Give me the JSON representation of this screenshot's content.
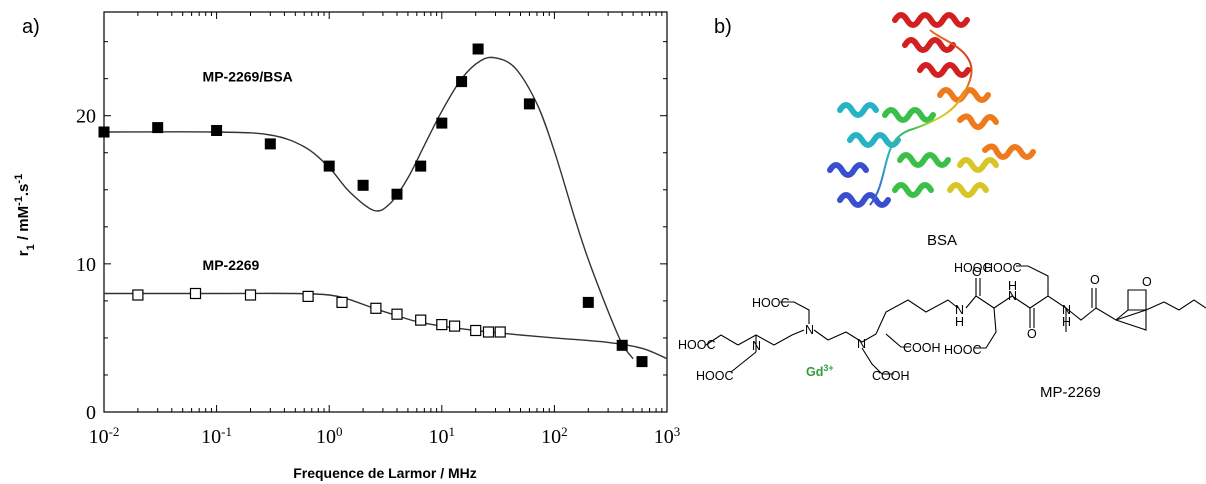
{
  "panels": {
    "a": "a)",
    "b": "b)"
  },
  "chart_data": {
    "type": "scatter",
    "xscale": "log",
    "xlim": [
      0.01,
      1000
    ],
    "ylim": [
      0,
      27
    ],
    "xlabel": "Frequence de Larmor / MHz",
    "ylabel_parts": {
      "r": "r",
      "r_sub": "1",
      "mid": " / mM",
      "mm_sup": "-1",
      "dot": ".s",
      "s_sup": "-1"
    },
    "xtick_labels": [
      {
        "value": 0.01,
        "base": "10",
        "exp": "-2"
      },
      {
        "value": 0.1,
        "base": "10",
        "exp": "-1"
      },
      {
        "value": 1,
        "base": "10",
        "exp": "0"
      },
      {
        "value": 10,
        "base": "10",
        "exp": "1"
      },
      {
        "value": 100,
        "base": "10",
        "exp": "2"
      },
      {
        "value": 1000,
        "base": "10",
        "exp": "3"
      }
    ],
    "ytick_labels": [
      {
        "value": 0,
        "label": "0"
      },
      {
        "value": 10,
        "label": "10"
      },
      {
        "value": 20,
        "label": "20"
      }
    ],
    "series": [
      {
        "name": "MP-2269/BSA",
        "marker": "filled-square",
        "label_at": [
          0.075,
          22.3
        ],
        "points": [
          [
            0.01,
            18.9
          ],
          [
            0.03,
            19.2
          ],
          [
            0.1,
            19.0
          ],
          [
            0.3,
            18.1
          ],
          [
            1.0,
            16.6
          ],
          [
            2.0,
            15.3
          ],
          [
            4.0,
            14.7
          ],
          [
            6.5,
            16.6
          ],
          [
            10,
            19.5
          ],
          [
            15,
            22.3
          ],
          [
            21,
            24.5
          ],
          [
            60,
            20.8
          ],
          [
            200,
            7.4
          ],
          [
            400,
            4.5
          ],
          [
            600,
            3.4
          ]
        ],
        "fit": [
          [
            0.01,
            18.9
          ],
          [
            0.1,
            18.9
          ],
          [
            0.3,
            18.7
          ],
          [
            0.6,
            17.9
          ],
          [
            1.0,
            16.5
          ],
          [
            1.5,
            14.9
          ],
          [
            2.5,
            13.6
          ],
          [
            3.5,
            14.1
          ],
          [
            5,
            15.8
          ],
          [
            7,
            18.0
          ],
          [
            10,
            20.3
          ],
          [
            15,
            22.5
          ],
          [
            22,
            23.7
          ],
          [
            30,
            23.9
          ],
          [
            45,
            23.2
          ],
          [
            70,
            20.8
          ],
          [
            100,
            17.6
          ],
          [
            150,
            13.2
          ],
          [
            200,
            10.3
          ],
          [
            300,
            6.8
          ],
          [
            400,
            4.6
          ],
          [
            500,
            3.6
          ]
        ]
      },
      {
        "name": "MP-2269",
        "marker": "open-square",
        "label_at": [
          0.075,
          9.6
        ],
        "points": [
          [
            0.02,
            7.9
          ],
          [
            0.065,
            8.0
          ],
          [
            0.2,
            7.9
          ],
          [
            0.65,
            7.8
          ],
          [
            1.3,
            7.4
          ],
          [
            2.6,
            7.0
          ],
          [
            4.0,
            6.6
          ],
          [
            6.5,
            6.2
          ],
          [
            10,
            5.9
          ],
          [
            13,
            5.8
          ],
          [
            20,
            5.5
          ],
          [
            26,
            5.4
          ],
          [
            33,
            5.4
          ]
        ],
        "fit": [
          [
            0.01,
            8.0
          ],
          [
            0.1,
            8.0
          ],
          [
            0.5,
            8.0
          ],
          [
            1.0,
            7.9
          ],
          [
            1.5,
            7.6
          ],
          [
            2.5,
            7.0
          ],
          [
            4,
            6.5
          ],
          [
            6,
            6.1
          ],
          [
            10,
            5.8
          ],
          [
            20,
            5.5
          ],
          [
            50,
            5.2
          ],
          [
            100,
            5.0
          ],
          [
            300,
            4.7
          ],
          [
            600,
            4.3
          ],
          [
            1000,
            3.6
          ]
        ]
      }
    ]
  },
  "structure": {
    "protein_caption": "BSA",
    "compound_caption": "MP-2269",
    "groups": [
      "HOOC",
      "HOOC",
      "HOOC",
      "HOOC",
      "COOH",
      "COOH",
      "HOOC",
      "HOOC"
    ],
    "atoms": [
      "N",
      "N",
      "N",
      "N",
      "N",
      "N",
      "O",
      "O",
      "O",
      "O"
    ],
    "hydrogens": [
      "H",
      "H",
      "H"
    ],
    "metal_base": "Gd",
    "metal_sup": "3+",
    "metal_color": "#2e9e3a"
  }
}
